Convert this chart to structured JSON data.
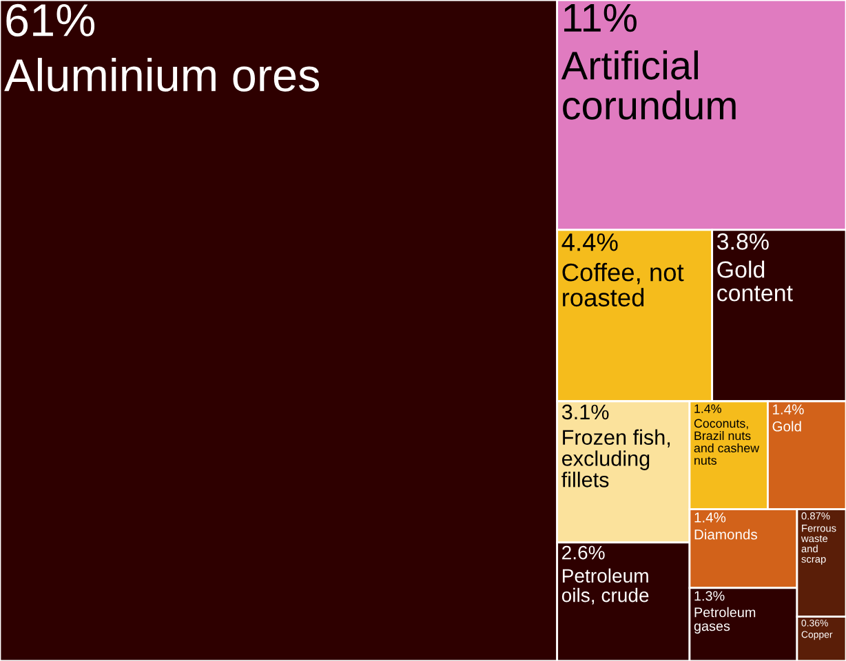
{
  "chart_data": {
    "type": "other",
    "categories": [
      "Aluminium ores",
      "Artificial corundum",
      "Coffee, not roasted",
      "Gold content",
      "Frozen fish, excluding fillets",
      "Petroleum oils, crude",
      "Coconuts, Brazil nuts and cashew nuts",
      "Gold",
      "Diamonds",
      "Petroleum gases",
      "Ferrous waste and scrap",
      "Copper"
    ],
    "values": [
      61,
      11,
      4.4,
      3.8,
      3.1,
      2.6,
      1.4,
      1.4,
      1.4,
      1.3,
      0.87,
      0.36
    ],
    "value_labels": [
      "61%",
      "11%",
      "4.4%",
      "3.8%",
      "3.1%",
      "2.6%",
      "1.4%",
      "1.4%",
      "1.4%",
      "1.3%",
      "0.87%",
      "0.36%"
    ],
    "colors": [
      "#2e0000",
      "#e07bc0",
      "#f5bc1c",
      "#2e0000",
      "#fbe29c",
      "#2e0000",
      "#f5bc1c",
      "#d2621a",
      "#d2621a",
      "#2e0000",
      "#5a1e08",
      "#5a1e08"
    ]
  }
}
